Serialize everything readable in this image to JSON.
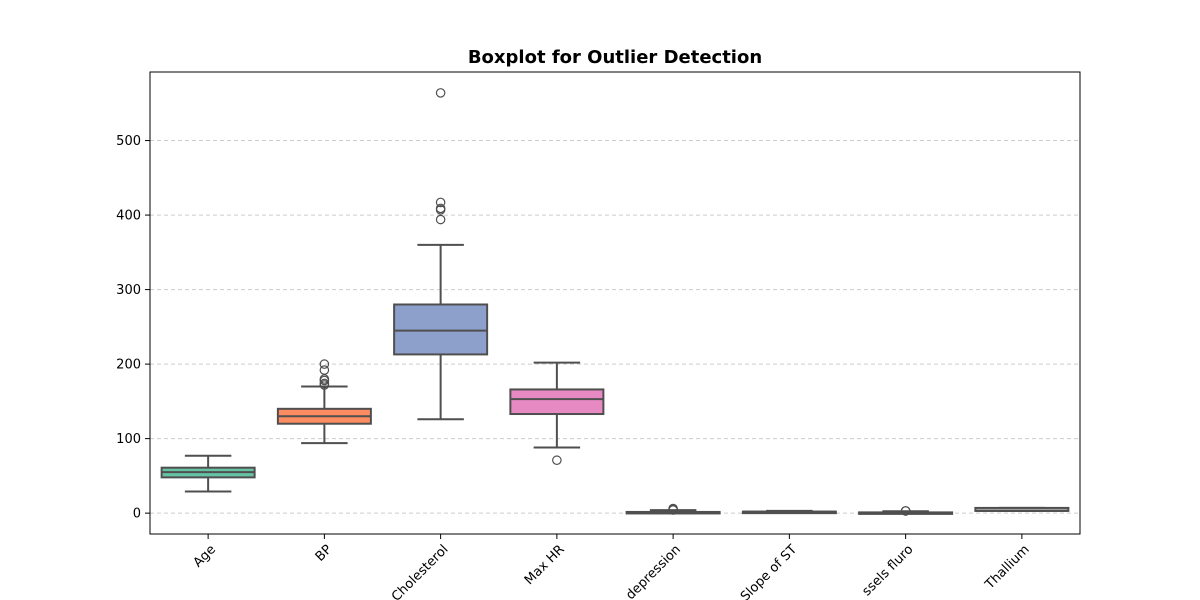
{
  "chart_data": {
    "type": "box",
    "title": "Boxplot for Outlier Detection",
    "xlabel": "",
    "ylabel": "",
    "ylim": [
      -28,
      592
    ],
    "yticks": [
      0,
      100,
      200,
      300,
      400,
      500
    ],
    "grid": "y-dashed",
    "categories": [
      "Age",
      "BP",
      "Cholesterol",
      "Max HR",
      "ST depression",
      "Slope of ST",
      "Number of vessels fluro",
      "Thallium"
    ],
    "x_tick_labels_visible": [
      "Age",
      "BP",
      "Cholesterol",
      "Max HR",
      "depression",
      "Slope of ST",
      "ssels fluro",
      "Thallium"
    ],
    "series": [
      {
        "category": "Age",
        "color": "#66c2a5",
        "whisker_low": 29,
        "q1": 48,
        "median": 55,
        "q3": 61,
        "whisker_high": 77,
        "outliers": []
      },
      {
        "category": "BP",
        "color": "#fc8d62",
        "whisker_low": 94,
        "q1": 120,
        "median": 130,
        "q3": 140,
        "whisker_high": 170,
        "outliers": [
          172,
          174,
          178,
          180,
          192,
          200
        ]
      },
      {
        "category": "Cholesterol",
        "color": "#8da0cb",
        "whisker_low": 126,
        "q1": 213,
        "median": 245,
        "q3": 280,
        "whisker_high": 360,
        "outliers": [
          394,
          407,
          409,
          417,
          564
        ]
      },
      {
        "category": "Max HR",
        "color": "#e78ac3",
        "whisker_low": 88,
        "q1": 133,
        "median": 153,
        "q3": 166,
        "whisker_high": 202,
        "outliers": [
          71
        ]
      },
      {
        "category": "ST depression",
        "color": "#a6d854",
        "whisker_low": 0,
        "q1": 0,
        "median": 0.8,
        "q3": 1.6,
        "whisker_high": 4.0,
        "outliers": [
          4.2,
          4.4,
          5.6,
          6.2
        ]
      },
      {
        "category": "Slope of ST",
        "color": "#ffd92f",
        "whisker_low": 1,
        "q1": 1,
        "median": 2,
        "q3": 2,
        "whisker_high": 3,
        "outliers": []
      },
      {
        "category": "Number of vessels fluro",
        "color": "#e5c494",
        "whisker_low": 0,
        "q1": 0,
        "median": 0,
        "q3": 1,
        "whisker_high": 2.5,
        "outliers": [
          3,
          3
        ]
      },
      {
        "category": "Thallium",
        "color": "#b3b3b3",
        "whisker_low": 3,
        "q1": 3,
        "median": 3,
        "q3": 7,
        "whisker_high": 7,
        "outliers": []
      }
    ]
  }
}
